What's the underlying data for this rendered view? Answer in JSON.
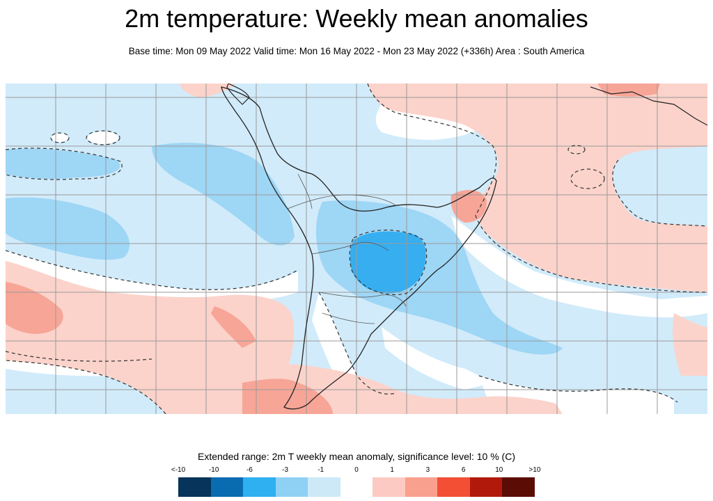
{
  "title": "2m temperature: Weekly mean anomalies",
  "subtitle": "Base time: Mon 09 May 2022 Valid time: Mon 16 May 2022 - Mon 23 May 2022 (+336h) Area : South America",
  "legend": {
    "title": "Extended range: 2m T weekly mean anomaly, significance level: 10 % (C)",
    "tick_labels": [
      "<-10",
      "-10",
      "-6",
      "-3",
      "-1",
      "0",
      "1",
      "3",
      "6",
      "10",
      ">10"
    ],
    "colors": [
      "#06345a",
      "#0a6cb0",
      "#2fb0f0",
      "#8fd0f5",
      "#cde9f8",
      "#ffffff",
      "#fccac2",
      "#f9a08e",
      "#f24f35",
      "#b11a0b",
      "#5a0c05"
    ]
  },
  "map_colors": {
    "ocean_light_blue": "#d1ebfa",
    "medium_blue": "#9ed6f5",
    "strong_blue": "#36aef0",
    "light_red": "#fbd3cb",
    "medium_red": "#f7a597",
    "neutral": "#ffffff",
    "coast": "#222222",
    "grid": "#9a9a9a",
    "contour": "#333333"
  }
}
